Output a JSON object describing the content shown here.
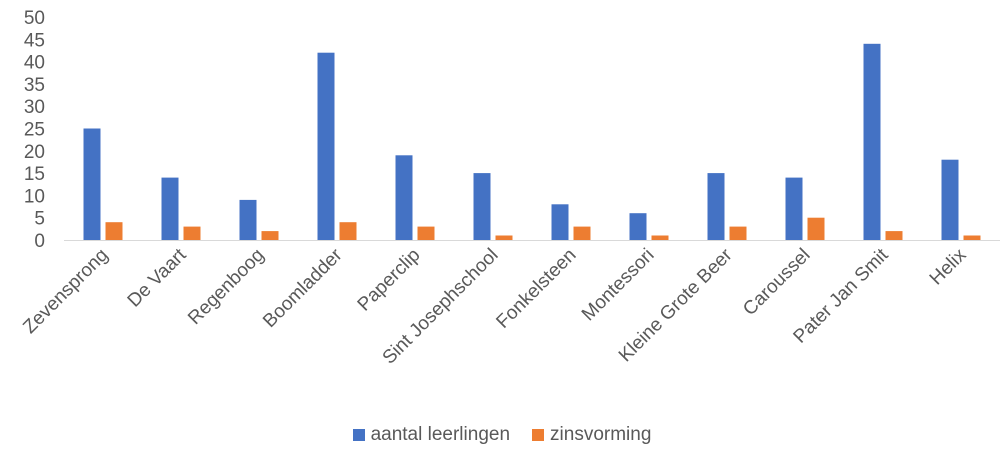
{
  "chart_data": {
    "type": "bar",
    "categories": [
      "Zevensprong",
      "De Vaart",
      "Regenboog",
      "Boomladder",
      "Paperclip",
      "Sint Josephschool",
      "Fonkelsteen",
      "Montessori",
      "Kleine Grote Beer",
      "Caroussel",
      "Pater Jan Smit",
      "Helix"
    ],
    "series": [
      {
        "name": "aantal leerlingen",
        "color": "#4472C4",
        "values": [
          25,
          14,
          9,
          42,
          19,
          15,
          8,
          6,
          15,
          14,
          44,
          18
        ]
      },
      {
        "name": "zinsvorming",
        "color": "#ED7D31",
        "values": [
          4,
          3,
          2,
          4,
          3,
          1,
          3,
          1,
          3,
          5,
          2,
          1
        ]
      }
    ],
    "yticks": [
      "0",
      "5",
      "10",
      "15",
      "20",
      "25",
      "30",
      "35",
      "40",
      "45",
      "50"
    ],
    "ylim": [
      0,
      50
    ],
    "grid": false,
    "legend_position": "bottom"
  }
}
